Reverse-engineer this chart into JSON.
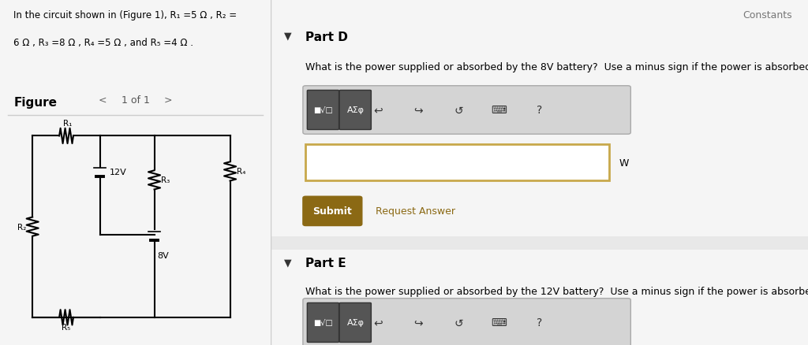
{
  "bg_color": "#f5f5f5",
  "left_panel_bg": "#fffde7",
  "right_panel_bg": "#ffffff",
  "header_text": "Constants",
  "problem_text_line1": "In the circuit shown in (Figure 1), R₁ =5 Ω , R₂ =",
  "problem_text_line2": "6 Ω , R₃ =8 Ω , R₄ =5 Ω , and R₅ =4 Ω .",
  "figure_label": "Figure",
  "nav_text": "1 of 1",
  "part_d_label": "Part D",
  "part_d_question": "What is the power supplied or absorbed by the 8V battery?  Use a minus sign if the power is absorbed.",
  "part_e_label": "Part E",
  "part_e_question": "What is the power supplied or absorbed by the 12V battery?  Use a minus sign if the power is absorbed.",
  "submit_btn_color": "#8B6914",
  "submit_btn_text": "Submit",
  "request_answer_text": "Request Answer",
  "input_border_color": "#c8a84b",
  "unit_w": "W",
  "divider_color": "#cccccc",
  "toolbar_bg_color": "#d4d4d4",
  "btn_color": "#555555"
}
